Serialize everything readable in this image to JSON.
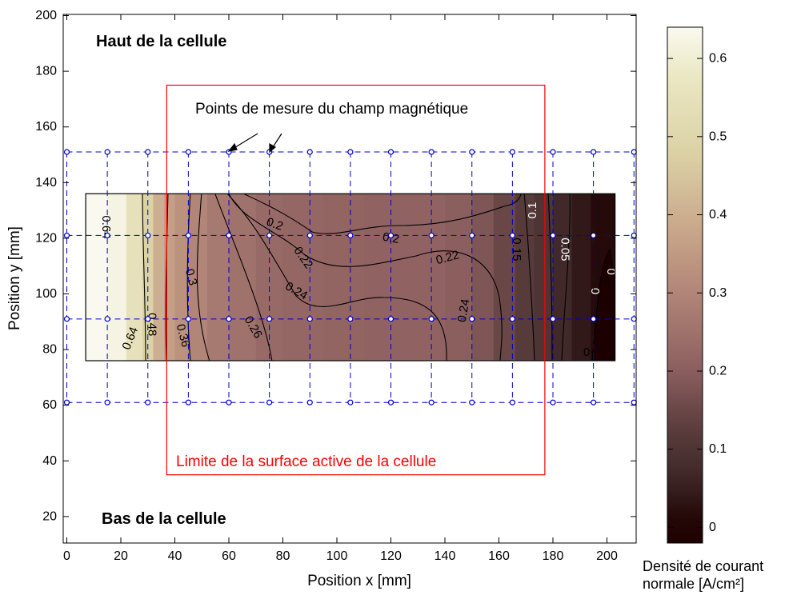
{
  "chart_data": [
    {
      "type": "heatmap",
      "subtype": "filled contour map with measurement grid",
      "xlabel": "Position x [mm]",
      "ylabel": "Position y [mm]",
      "xlim": [
        0,
        210
      ],
      "ylim": [
        10,
        200
      ],
      "xticks": [
        0,
        20,
        40,
        60,
        80,
        100,
        120,
        140,
        160,
        180,
        200
      ],
      "yticks": [
        20,
        40,
        60,
        80,
        100,
        120,
        140,
        160,
        180,
        200
      ],
      "grid": false,
      "colormap": "pink",
      "domain_extent": {
        "x": [
          7,
          203
        ],
        "y": [
          76,
          136
        ]
      },
      "active_surface_limit": {
        "x": [
          37,
          177
        ],
        "y": [
          35,
          175
        ],
        "color": "#ff0000"
      },
      "measurement_grid": {
        "x": [
          0,
          15,
          30,
          45,
          60,
          75,
          90,
          105,
          120,
          135,
          150,
          165,
          180,
          195,
          210
        ],
        "y": [
          61,
          91,
          121,
          151
        ],
        "color": "#0000cc"
      },
      "contour_levels": [
        0.64,
        0.48,
        0.36,
        0.3,
        0.26,
        0.24,
        0.22,
        0.2,
        0.15,
        0.1,
        0.05,
        0
      ],
      "column_values": [
        {
          "x": 7,
          "value": 0.64
        },
        {
          "x": 15,
          "value": 0.62
        },
        {
          "x": 22,
          "value": 0.55
        },
        {
          "x": 28,
          "value": 0.48
        },
        {
          "x": 32,
          "value": 0.4
        },
        {
          "x": 36,
          "value": 0.36
        },
        {
          "x": 40,
          "value": 0.33
        },
        {
          "x": 45,
          "value": 0.3
        },
        {
          "x": 52,
          "value": 0.27
        },
        {
          "x": 60,
          "value": 0.25
        },
        {
          "x": 70,
          "value": 0.23
        },
        {
          "x": 80,
          "value": 0.22
        },
        {
          "x": 95,
          "value": 0.215
        },
        {
          "x": 110,
          "value": 0.21
        },
        {
          "x": 125,
          "value": 0.21
        },
        {
          "x": 140,
          "value": 0.2
        },
        {
          "x": 150,
          "value": 0.18
        },
        {
          "x": 158,
          "value": 0.15
        },
        {
          "x": 166,
          "value": 0.12
        },
        {
          "x": 173,
          "value": 0.1
        },
        {
          "x": 180,
          "value": 0.07
        },
        {
          "x": 187,
          "value": 0.04
        },
        {
          "x": 194,
          "value": 0.015
        },
        {
          "x": 203,
          "value": 0.005
        }
      ],
      "contour_labels": [
        {
          "text": "0.64",
          "x": 14.5,
          "y": 124,
          "angle": 90,
          "color": "#000000"
        },
        {
          "text": "0.64",
          "x": 23.5,
          "y": 84,
          "angle": -68,
          "color": "#000000"
        },
        {
          "text": "0.48",
          "x": 31.5,
          "y": 89,
          "angle": 90,
          "color": "#000000"
        },
        {
          "text": "0.36",
          "x": 43,
          "y": 85,
          "angle": 75,
          "color": "#000000"
        },
        {
          "text": "0.3",
          "x": 46,
          "y": 106,
          "angle": 75,
          "color": "#000000"
        },
        {
          "text": "0.26",
          "x": 69,
          "y": 88,
          "angle": 60,
          "color": "#000000"
        },
        {
          "text": "0.24",
          "x": 85,
          "y": 101,
          "angle": 30,
          "color": "#000000"
        },
        {
          "text": "0.22",
          "x": 87.5,
          "y": 113,
          "angle": 55,
          "color": "#000000"
        },
        {
          "text": "0.2",
          "x": 77,
          "y": 125,
          "angle": 20,
          "color": "#000000"
        },
        {
          "text": "0.2",
          "x": 120,
          "y": 120,
          "angle": 10,
          "color": "#000000"
        },
        {
          "text": "0.22",
          "x": 141,
          "y": 113,
          "angle": -15,
          "color": "#000000"
        },
        {
          "text": "0.24",
          "x": 147,
          "y": 94,
          "angle": -80,
          "color": "#000000"
        },
        {
          "text": "0.15",
          "x": 166.5,
          "y": 116,
          "angle": 90,
          "color": "#000000"
        },
        {
          "text": "0.1",
          "x": 172.5,
          "y": 130,
          "angle": -90,
          "color": "#ffffff"
        },
        {
          "text": "0.05",
          "x": 184.5,
          "y": 116,
          "angle": 90,
          "color": "#ffffff"
        },
        {
          "text": "0",
          "x": 195.5,
          "y": 101,
          "angle": 90,
          "color": "#ffffff"
        },
        {
          "text": "0",
          "x": 201.5,
          "y": 108,
          "angle": 90,
          "color": "#ffffff"
        },
        {
          "text": "0",
          "x": 192.5,
          "y": 79,
          "angle": 0,
          "color": "#000000"
        }
      ],
      "annotations": {
        "top": "Haut de la cellule",
        "bottom": "Bas de la cellule",
        "points_label": "Points de mesure du champ magnétique",
        "active_surface_label": "Limite de la surface active de la cellule"
      }
    },
    {
      "type": "colorbar",
      "title_lines": [
        "Densité de courant",
        "normale [A/cm²]"
      ],
      "range": [
        -0.02,
        0.64
      ],
      "ticks": [
        0,
        0.1,
        0.2,
        0.3,
        0.4,
        0.5,
        0.6
      ],
      "colormap": "pink"
    }
  ]
}
